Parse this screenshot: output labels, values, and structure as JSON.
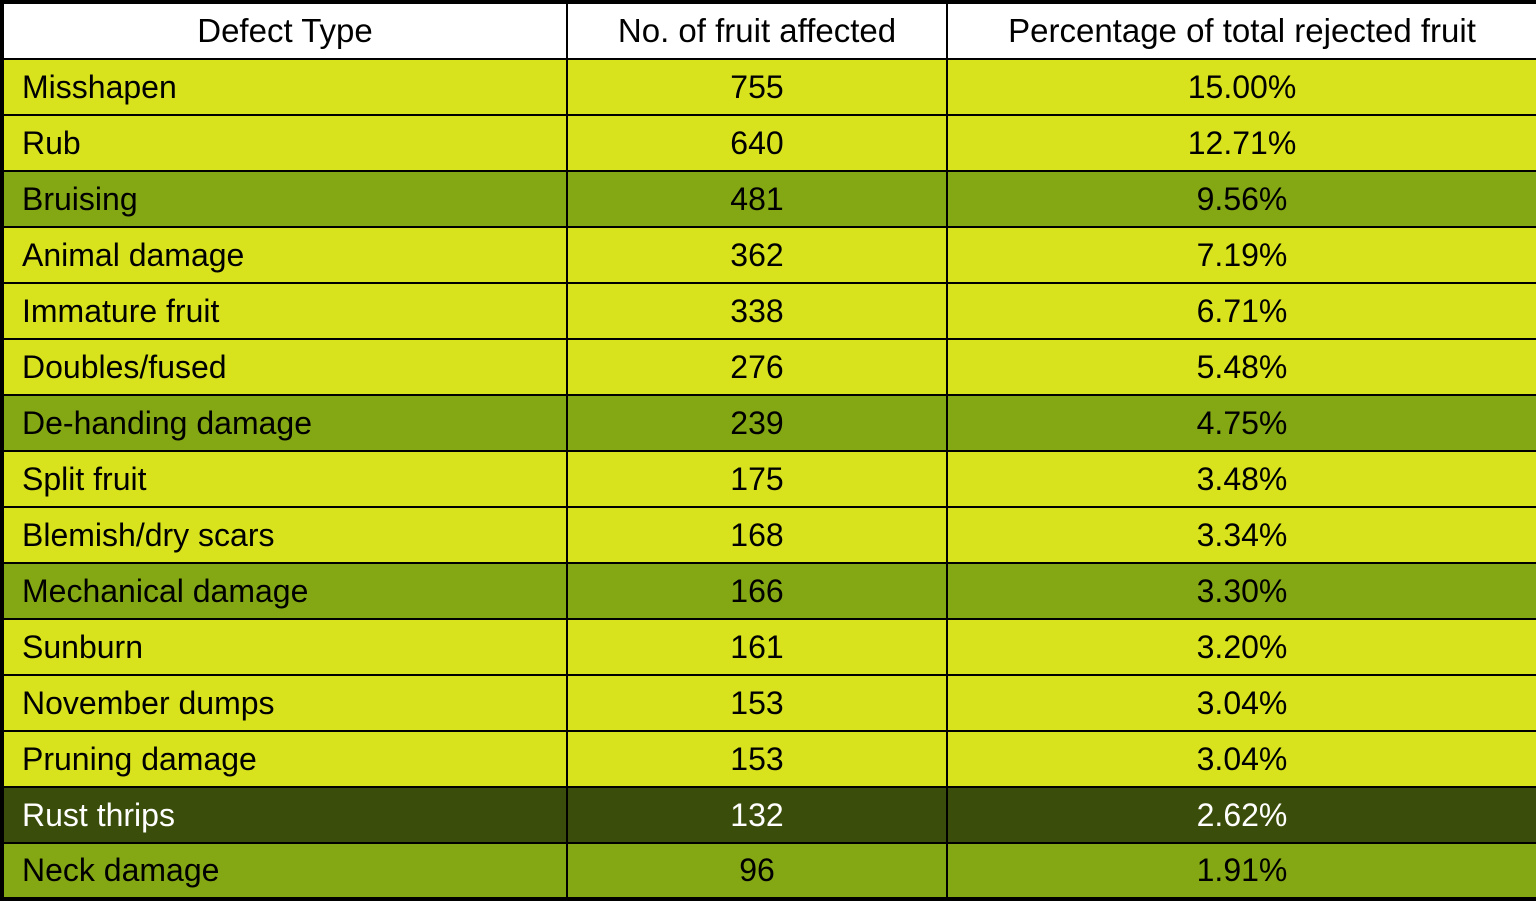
{
  "chart_data": {
    "type": "table",
    "title": "",
    "columns": [
      "Defect Type",
      "No. of fruit affected",
      "Percentage of total rejected fruit"
    ],
    "rows": [
      {
        "defect": "Misshapen",
        "count": "755",
        "pct": "15.00%",
        "variant": "bright"
      },
      {
        "defect": "Rub",
        "count": "640",
        "pct": "12.71%",
        "variant": "bright"
      },
      {
        "defect": "Bruising",
        "count": "481",
        "pct": "9.56%",
        "variant": "olive"
      },
      {
        "defect": "Animal damage",
        "count": "362",
        "pct": "7.19%",
        "variant": "bright"
      },
      {
        "defect": "Immature fruit",
        "count": "338",
        "pct": "6.71%",
        "variant": "bright"
      },
      {
        "defect": "Doubles/fused",
        "count": "276",
        "pct": "5.48%",
        "variant": "bright"
      },
      {
        "defect": "De-handing damage",
        "count": "239",
        "pct": "4.75%",
        "variant": "olive"
      },
      {
        "defect": "Split fruit",
        "count": "175",
        "pct": "3.48%",
        "variant": "bright"
      },
      {
        "defect": "Blemish/dry scars",
        "count": "168",
        "pct": "3.34%",
        "variant": "bright"
      },
      {
        "defect": "Mechanical damage",
        "count": "166",
        "pct": "3.30%",
        "variant": "olive"
      },
      {
        "defect": "Sunburn",
        "count": "161",
        "pct": "3.20%",
        "variant": "bright"
      },
      {
        "defect": "November dumps",
        "count": "153",
        "pct": "3.04%",
        "variant": "bright"
      },
      {
        "defect": "Pruning damage",
        "count": "153",
        "pct": "3.04%",
        "variant": "bright"
      },
      {
        "defect": "Rust thrips",
        "count": "132",
        "pct": "2.62%",
        "variant": "dark"
      },
      {
        "defect": "Neck damage",
        "count": "96",
        "pct": "1.91%",
        "variant": "olive"
      }
    ]
  },
  "colors": {
    "row_bright": "#d8e31e",
    "row_olive": "#84a714",
    "row_dark": "#3a4d0a",
    "header_bg": "#ffffff",
    "border": "#000000",
    "text_dark": "#000000",
    "text_light": "#ffffff"
  }
}
